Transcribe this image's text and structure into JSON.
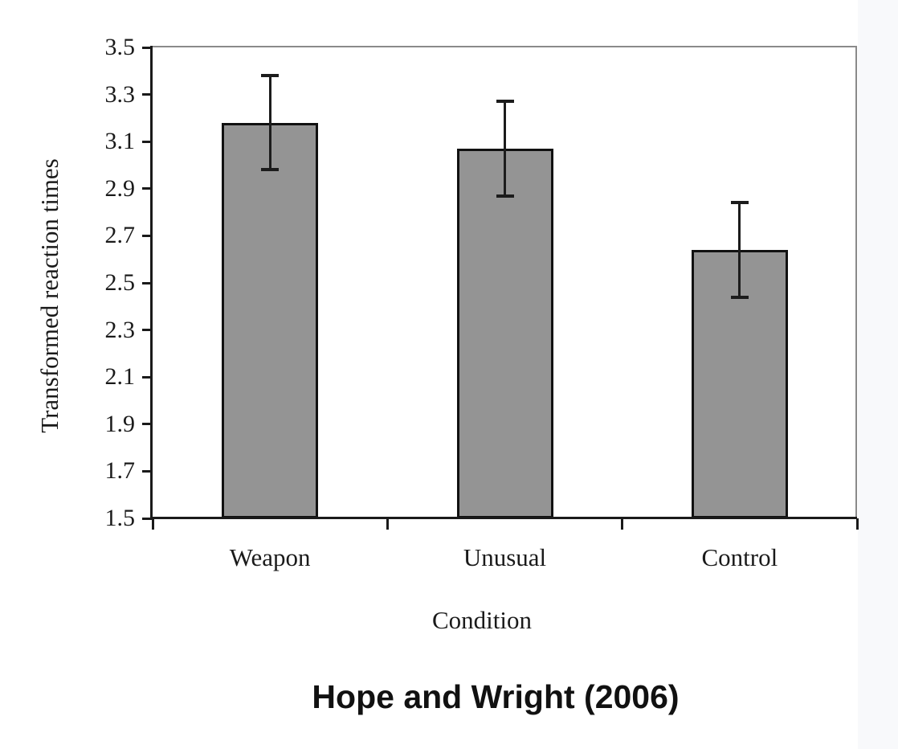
{
  "page": {
    "background_color": "#ffffff",
    "right_strip_color": "#f8f9fb"
  },
  "chart_data": {
    "type": "bar",
    "title": "",
    "xlabel": "Condition",
    "ylabel": "Transformed reaction times",
    "categories": [
      "Weapon",
      "Unusual",
      "Control"
    ],
    "values": [
      3.18,
      3.07,
      2.64
    ],
    "error_bars": [
      0.2,
      0.2,
      0.2
    ],
    "error_bar_ranges": [
      {
        "low": 2.98,
        "high": 3.38
      },
      {
        "low": 2.87,
        "high": 3.27
      },
      {
        "low": 2.44,
        "high": 2.84
      }
    ],
    "ylim": [
      1.5,
      3.5
    ],
    "ytick_step": 0.2,
    "ytick_labels": [
      "3.5",
      "3.3",
      "3.1",
      "2.9",
      "2.7",
      "2.5",
      "2.3",
      "2.1",
      "1.9",
      "1.7",
      "1.5"
    ],
    "grid": false,
    "legend": false,
    "bar_color": "#949494",
    "bar_border_color": "#111111",
    "axis_color": "#1a1a1a",
    "frame_color": "#8a8a8a",
    "error_bar_color": "#1c1c1c"
  },
  "caption": "Hope and Wright (2006)"
}
